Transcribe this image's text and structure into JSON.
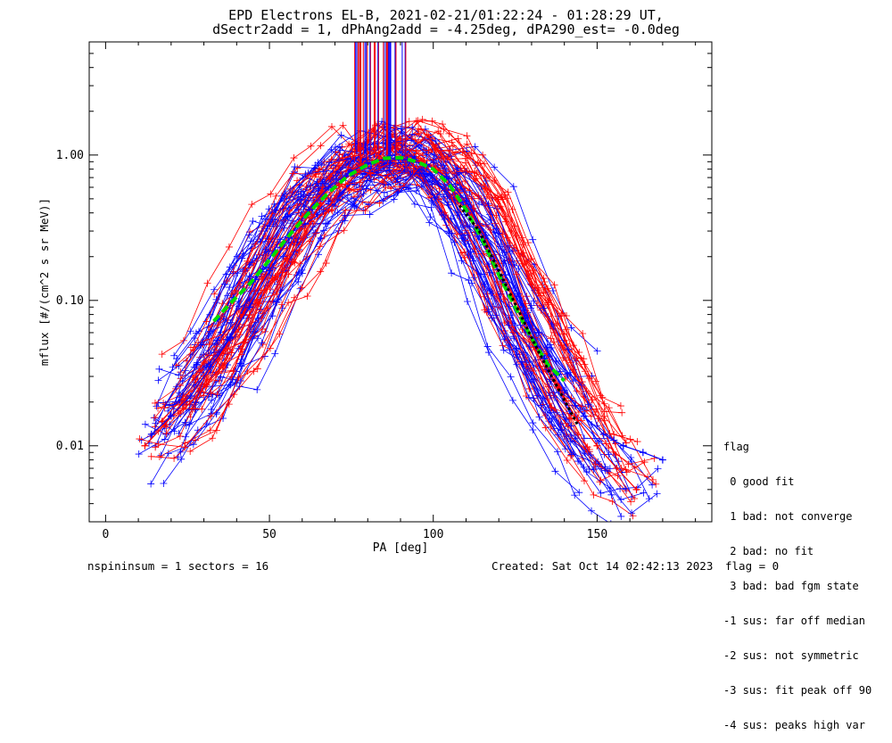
{
  "header": {
    "title_line1": "EPD Electrons EL-B, 2021-02-21/01:22:24 - 01:28:29 UT,",
    "title_line2": "dSectr2add = 1, dPhAng2add = -4.25deg, dPA290_est=  -0.0deg"
  },
  "footer": {
    "left": "nspininsum =  1  sectors = 16",
    "created": "Created: Sat Oct 14 02:42:13 2023",
    "flag": "flag = 0"
  },
  "legend": {
    "title": "flag",
    "items": [
      " 0 good fit",
      " 1 bad: not converge",
      " 2 bad: no fit",
      " 3 bad: bad fgm state",
      "-1 sus: far off median",
      "-2 sus: not symmetric",
      "-3 sus: fit peak off 90",
      "-4 sus: peaks high var"
    ]
  },
  "chart_data": {
    "type": "line",
    "title": "EPD Electrons EL-B, 2021-02-21/01:22:24 - 01:28:29 UT, dSectr2add = 1, dPhAng2add = -4.25deg, dPA290_est=  -0.0deg",
    "xlabel": "PA [deg]",
    "ylabel": "mflux [#/(cm^2 s sr MeV)]",
    "xlim": [
      -5,
      185
    ],
    "ylim": [
      0.003,
      6
    ],
    "yscale": "log",
    "xticks": [
      0,
      50,
      100,
      150
    ],
    "xtick_labels": [
      "0",
      "50",
      "100",
      "150"
    ],
    "yticks": [
      0.01,
      0.1,
      1.0
    ],
    "ytick_labels": [
      "0.01",
      "0.10",
      "1.00"
    ],
    "grid": false,
    "colors": {
      "series_a": "#ff0000",
      "series_b": "#0000ff",
      "fit": "#00dd00",
      "reference": "#000000"
    },
    "series": [
      {
        "color": "#ff0000",
        "marker": "+",
        "style": "solid",
        "x": [
          12,
          18,
          24,
          30,
          36,
          42,
          48,
          54,
          60,
          66,
          72,
          78,
          84,
          90,
          96,
          102,
          108,
          114,
          120,
          126,
          132,
          138,
          144,
          150,
          156,
          162
        ],
        "y": [
          0.01,
          0.014,
          0.02,
          0.03,
          0.045,
          0.08,
          0.14,
          0.24,
          0.38,
          0.55,
          0.7,
          0.85,
          0.93,
          0.95,
          0.9,
          0.78,
          0.55,
          0.33,
          0.18,
          0.09,
          0.045,
          0.025,
          0.015,
          0.01,
          0.007,
          0.005
        ]
      },
      {
        "color": "#0000ff",
        "marker": "+",
        "style": "solid",
        "x": [
          14,
          20,
          26,
          32,
          38,
          44,
          50,
          56,
          62,
          68,
          74,
          80,
          86,
          92,
          98,
          104,
          110,
          116,
          122,
          128,
          134,
          140,
          146,
          152,
          158,
          164,
          170
        ],
        "y": [
          0.012,
          0.016,
          0.022,
          0.035,
          0.055,
          0.09,
          0.16,
          0.27,
          0.42,
          0.6,
          0.75,
          0.88,
          0.95,
          0.93,
          0.86,
          0.7,
          0.48,
          0.28,
          0.15,
          0.075,
          0.04,
          0.024,
          0.016,
          0.012,
          0.01,
          0.009,
          0.008
        ]
      },
      {
        "color": "#00dd00",
        "marker": "",
        "style": "dashed",
        "x": [
          33,
          38,
          44,
          50,
          56,
          62,
          68,
          74,
          80,
          85,
          90,
          95,
          100,
          105,
          110,
          115,
          120,
          125,
          130,
          135,
          140
        ],
        "y": [
          0.072,
          0.095,
          0.13,
          0.19,
          0.28,
          0.4,
          0.55,
          0.72,
          0.86,
          0.95,
          0.96,
          0.9,
          0.8,
          0.62,
          0.42,
          0.26,
          0.15,
          0.09,
          0.055,
          0.036,
          0.028
        ]
      },
      {
        "color": "#000000",
        "marker": "",
        "style": "dotted",
        "x": [
          108,
          114,
          120,
          126,
          132,
          138,
          144
        ],
        "y": [
          0.45,
          0.3,
          0.16,
          0.085,
          0.045,
          0.025,
          0.014
        ]
      }
    ]
  }
}
